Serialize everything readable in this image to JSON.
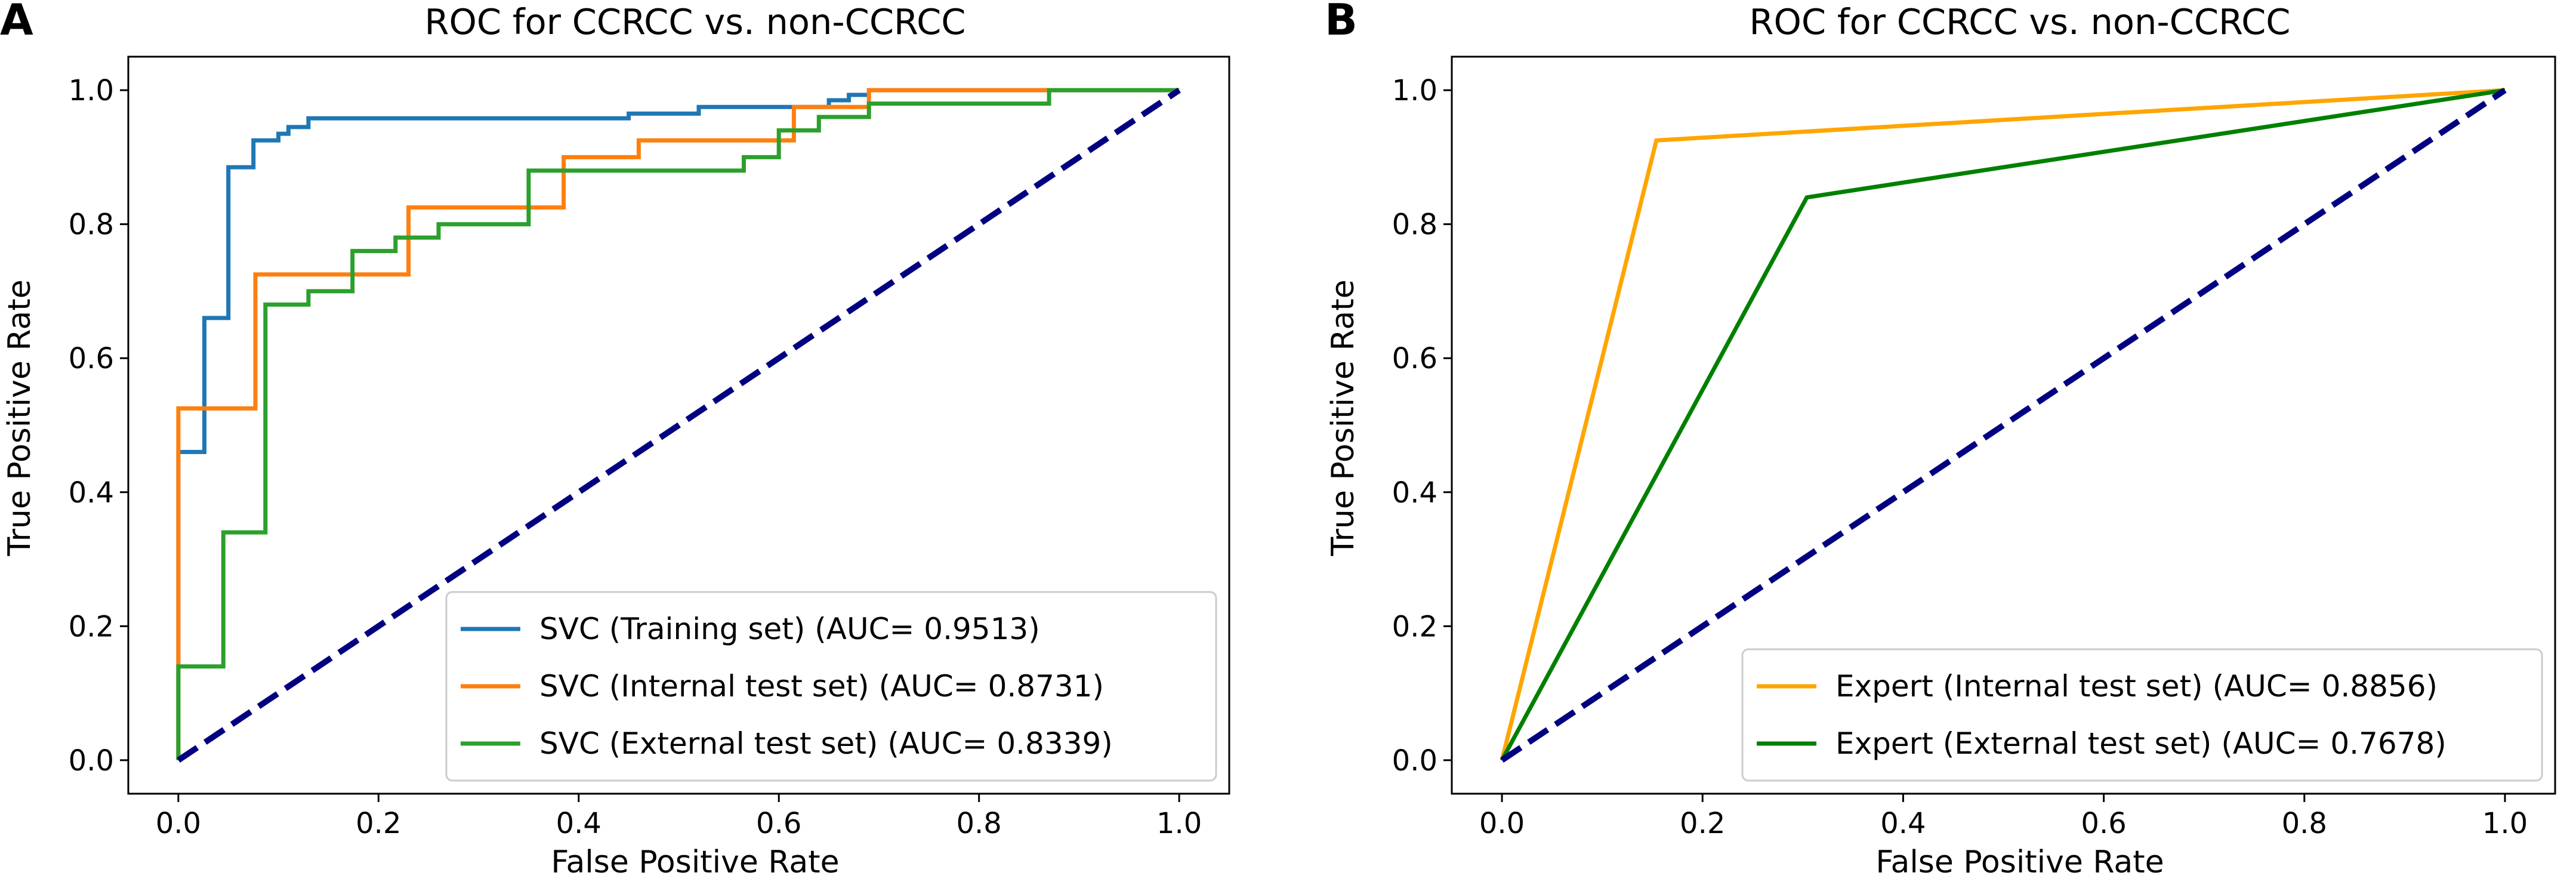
{
  "chart_data": [
    {
      "panel_label": "A",
      "type": "line",
      "title": "ROC for CCRCC vs. non-CCRCC",
      "xlabel": "False Positive Rate",
      "ylabel": "True Positive Rate",
      "xlim": [
        -0.05,
        1.05
      ],
      "ylim": [
        -0.05,
        1.05
      ],
      "xticks": [
        "0.0",
        "0.2",
        "0.4",
        "0.6",
        "0.8",
        "1.0"
      ],
      "yticks": [
        "0.0",
        "0.2",
        "0.4",
        "0.6",
        "0.8",
        "1.0"
      ],
      "legend_position": "lower-right",
      "series": [
        {
          "name": "SVC (Training set) (AUC= 0.9513)",
          "color": "#1f77b4",
          "x": [
            0,
            0,
            0.026,
            0.026,
            0.05,
            0.05,
            0.075,
            0.075,
            0.1,
            0.1,
            0.11,
            0.11,
            0.13,
            0.13,
            0.45,
            0.45,
            0.52,
            0.52,
            0.65,
            0.65,
            0.67,
            0.67,
            0.69,
            0.69,
            1.0
          ],
          "y": [
            0,
            0.46,
            0.46,
            0.66,
            0.66,
            0.885,
            0.885,
            0.925,
            0.925,
            0.935,
            0.935,
            0.945,
            0.945,
            0.958,
            0.958,
            0.965,
            0.965,
            0.975,
            0.975,
            0.985,
            0.985,
            0.993,
            0.993,
            1.0,
            1.0
          ]
        },
        {
          "name": "SVC (Internal test set) (AUC= 0.8731)",
          "color": "#ff7f0e",
          "x": [
            0,
            0,
            0.077,
            0.077,
            0.23,
            0.23,
            0.385,
            0.385,
            0.46,
            0.46,
            0.615,
            0.615,
            0.69,
            0.69,
            0.87,
            0.87,
            1.0
          ],
          "y": [
            0,
            0.525,
            0.525,
            0.725,
            0.725,
            0.825,
            0.825,
            0.9,
            0.9,
            0.925,
            0.925,
            0.975,
            0.975,
            1.0,
            1.0,
            1.0,
            1.0
          ],
          "stroke_order": 2
        },
        {
          "name": "SVC (External test set) (AUC= 0.8339)",
          "color": "#2ca02c",
          "x": [
            0,
            0,
            0.045,
            0.045,
            0.087,
            0.087,
            0.13,
            0.13,
            0.174,
            0.174,
            0.217,
            0.217,
            0.23,
            0.23,
            0.26,
            0.26,
            0.35,
            0.35,
            0.565,
            0.565,
            0.6,
            0.6,
            0.64,
            0.64,
            0.69,
            0.69,
            0.87,
            0.87,
            1.0
          ],
          "y": [
            0,
            0.14,
            0.14,
            0.34,
            0.34,
            0.68,
            0.68,
            0.7,
            0.7,
            0.76,
            0.76,
            0.78,
            0.78,
            0.78,
            0.78,
            0.8,
            0.8,
            0.88,
            0.88,
            0.9,
            0.9,
            0.94,
            0.94,
            0.96,
            0.96,
            0.98,
            0.98,
            1.0,
            1.0
          ]
        }
      ],
      "reference_line": {
        "x": [
          0,
          1
        ],
        "y": [
          0,
          1
        ],
        "color": "#000080",
        "style": "dashed"
      }
    },
    {
      "panel_label": "B",
      "type": "line",
      "title": "ROC for CCRCC vs. non-CCRCC",
      "xlabel": "False Positive Rate",
      "ylabel": "True Positive Rate",
      "xlim": [
        -0.05,
        1.05
      ],
      "ylim": [
        -0.05,
        1.05
      ],
      "xticks": [
        "0.0",
        "0.2",
        "0.4",
        "0.6",
        "0.8",
        "1.0"
      ],
      "yticks": [
        "0.0",
        "0.2",
        "0.4",
        "0.6",
        "0.8",
        "1.0"
      ],
      "legend_position": "lower-right",
      "series": [
        {
          "name": "Expert (Internal test set) (AUC= 0.8856)",
          "color": "#ffa500",
          "x": [
            0,
            0.154,
            1.0
          ],
          "y": [
            0,
            0.925,
            1.0
          ]
        },
        {
          "name": "Expert (External test set) (AUC= 0.7678)",
          "color": "#008000",
          "x": [
            0,
            0.304,
            1.0
          ],
          "y": [
            0,
            0.84,
            1.0
          ]
        }
      ],
      "reference_line": {
        "x": [
          0,
          1
        ],
        "y": [
          0,
          1
        ],
        "color": "#000080",
        "style": "dashed"
      }
    }
  ]
}
